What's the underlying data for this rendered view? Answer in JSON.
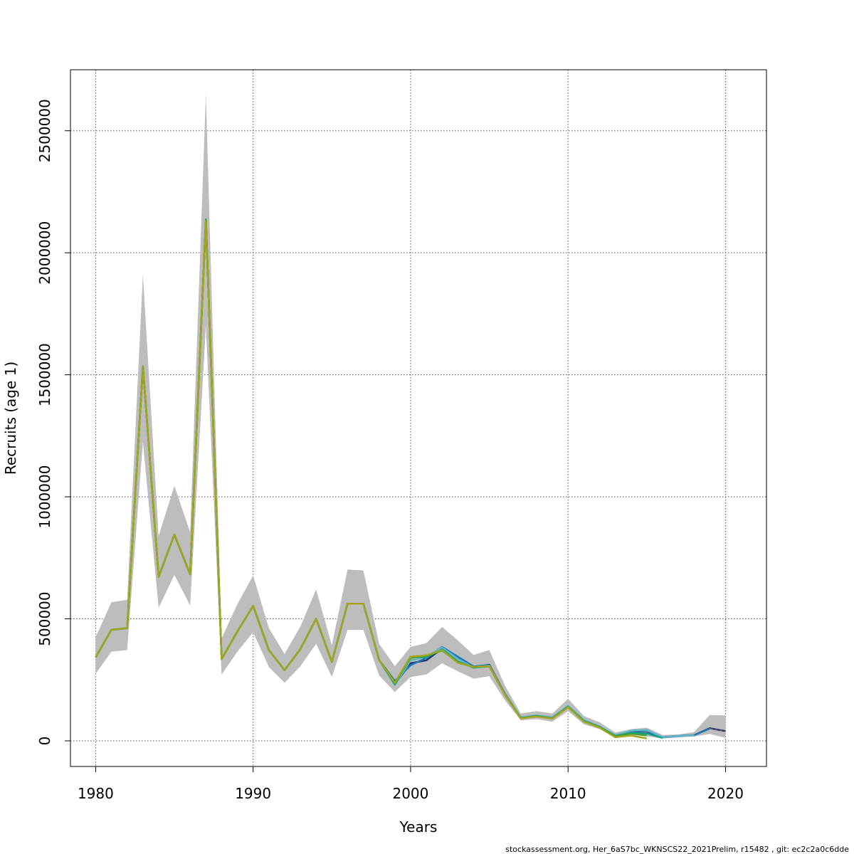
{
  "chart_data": {
    "type": "line",
    "title": "",
    "xlabel": "Years",
    "ylabel": "Recruits (age 1)",
    "xlim": [
      1978.4,
      2022.6
    ],
    "ylim": [
      -105000,
      2750000
    ],
    "x_ticks": [
      1980,
      1990,
      2000,
      2010,
      2020
    ],
    "x_tick_labels": [
      "1980",
      "1990",
      "2000",
      "2010",
      "2020"
    ],
    "y_ticks": [
      0,
      500000,
      1000000,
      1500000,
      2000000,
      2500000
    ],
    "y_tick_labels": [
      "0",
      "500000",
      "1000000",
      "1500000",
      "2000000",
      "2500000"
    ],
    "grid": true,
    "confidence_band": {
      "x": [
        1980,
        1981,
        1982,
        1983,
        1984,
        1985,
        1986,
        1987,
        1988,
        1989,
        1990,
        1991,
        1992,
        1993,
        1994,
        1995,
        1996,
        1997,
        1998,
        1999,
        2000,
        2001,
        2002,
        2003,
        2004,
        2005,
        2006,
        2007,
        2008,
        2009,
        2010,
        2011,
        2012,
        2013,
        2014,
        2015,
        2016,
        2017,
        2018,
        2019,
        2020
      ],
      "lower": [
        275000,
        365000,
        372000,
        1225000,
        545000,
        680000,
        555000,
        1700000,
        272000,
        365000,
        445000,
        302000,
        238000,
        305000,
        398000,
        262000,
        455000,
        455000,
        268000,
        200000,
        262000,
        272000,
        318000,
        285000,
        255000,
        265000,
        165000,
        84000,
        89000,
        78000,
        122000,
        68000,
        48000,
        18000,
        25000,
        18000,
        10000,
        14000,
        18000,
        28000,
        12000
      ],
      "upper": [
        425000,
        568000,
        578000,
        1910000,
        840000,
        1045000,
        855000,
        2650000,
        420000,
        560000,
        678000,
        462000,
        356000,
        468000,
        620000,
        392000,
        702000,
        698000,
        398000,
        306000,
        385000,
        400000,
        467000,
        412000,
        352000,
        372000,
        225000,
        112000,
        122000,
        112000,
        173000,
        102000,
        76000,
        34000,
        48000,
        54000,
        24000,
        26000,
        36000,
        106000,
        104000
      ]
    },
    "series": [
      {
        "color": "#2a2d7a",
        "x": [
          1980,
          1981,
          1982,
          1983,
          1984,
          1985,
          1986,
          1987,
          1988,
          1989,
          1990,
          1991,
          1992,
          1993,
          1994,
          1995,
          1996,
          1997,
          1998,
          1999,
          2000,
          2001,
          2002,
          2003,
          2004,
          2005,
          2006,
          2007,
          2008,
          2009,
          2010,
          2011,
          2012,
          2013,
          2014,
          2015,
          2016,
          2017,
          2018,
          2019,
          2020
        ],
        "y": [
          342000,
          455000,
          462000,
          1535000,
          672000,
          845000,
          682000,
          2135000,
          335000,
          448000,
          553000,
          372000,
          290000,
          376000,
          500000,
          323000,
          562000,
          562000,
          332000,
          232000,
          318000,
          330000,
          378000,
          342000,
          302000,
          312000,
          192000,
          94000,
          102000,
          94000,
          142000,
          84000,
          56000,
          21000,
          35000,
          32000,
          15000,
          21000,
          23000,
          52000,
          40000
        ]
      },
      {
        "color": "#1f78b4",
        "x": [
          1980,
          1981,
          1982,
          1983,
          1984,
          1985,
          1986,
          1987,
          1988,
          1989,
          1990,
          1991,
          1992,
          1993,
          1994,
          1995,
          1996,
          1997,
          1998,
          1999,
          2000,
          2001,
          2002,
          2003,
          2004,
          2005,
          2006,
          2007,
          2008,
          2009,
          2010,
          2011,
          2012,
          2013,
          2014,
          2015,
          2016,
          2017,
          2018,
          2019
        ],
        "y": [
          342000,
          455000,
          462000,
          1535000,
          672000,
          845000,
          682000,
          2135000,
          335000,
          448000,
          553000,
          372000,
          290000,
          376000,
          500000,
          323000,
          562000,
          562000,
          332000,
          245000,
          310000,
          340000,
          385000,
          345000,
          305000,
          310000,
          192000,
          95000,
          103000,
          95000,
          143000,
          85000,
          58000,
          22000,
          40000,
          42000,
          14000,
          20000,
          23000,
          50000
        ]
      },
      {
        "color": "#5fb8c7",
        "x": [
          1980,
          1981,
          1982,
          1983,
          1984,
          1985,
          1986,
          1987,
          1988,
          1989,
          1990,
          1991,
          1992,
          1993,
          1994,
          1995,
          1996,
          1997,
          1998,
          1999,
          2000,
          2001,
          2002,
          2003,
          2004,
          2005,
          2006,
          2007,
          2008,
          2009,
          2010,
          2011,
          2012,
          2013,
          2014,
          2015,
          2016,
          2017,
          2018
        ],
        "y": [
          342000,
          455000,
          462000,
          1535000,
          672000,
          845000,
          682000,
          2135000,
          335000,
          448000,
          553000,
          372000,
          290000,
          376000,
          500000,
          323000,
          562000,
          562000,
          332000,
          228000,
          330000,
          345000,
          383000,
          336000,
          300000,
          308000,
          190000,
          96000,
          104000,
          96000,
          144000,
          86000,
          58000,
          23000,
          42000,
          45000,
          15000,
          21000,
          22000
        ]
      },
      {
        "color": "#17a08a",
        "x": [
          1980,
          1981,
          1982,
          1983,
          1984,
          1985,
          1986,
          1987,
          1988,
          1989,
          1990,
          1991,
          1992,
          1993,
          1994,
          1995,
          1996,
          1997,
          1998,
          1999,
          2000,
          2001,
          2002,
          2003,
          2004,
          2005,
          2006,
          2007,
          2008,
          2009,
          2010,
          2011,
          2012,
          2013,
          2014,
          2015,
          2016
        ],
        "y": [
          342000,
          455000,
          462000,
          1535000,
          672000,
          845000,
          682000,
          2137000,
          335000,
          448000,
          553000,
          372000,
          290000,
          376000,
          500000,
          323000,
          562000,
          562000,
          332000,
          232000,
          345000,
          342000,
          375000,
          325000,
          300000,
          305000,
          188000,
          94000,
          102000,
          93000,
          140000,
          82000,
          57000,
          20000,
          33000,
          30000,
          12000
        ]
      },
      {
        "color": "#39a33a",
        "x": [
          1980,
          1981,
          1982,
          1983,
          1984,
          1985,
          1986,
          1987,
          1988,
          1989,
          1990,
          1991,
          1992,
          1993,
          1994,
          1995,
          1996,
          1997,
          1998,
          1999,
          2000,
          2001,
          2002,
          2003,
          2004,
          2005,
          2006,
          2007,
          2008,
          2009,
          2010,
          2011,
          2012,
          2013,
          2014,
          2015
        ],
        "y": [
          342000,
          455000,
          462000,
          1535000,
          672000,
          845000,
          682000,
          2135000,
          335000,
          448000,
          553000,
          372000,
          290000,
          376000,
          500000,
          323000,
          562000,
          562000,
          332000,
          235000,
          340000,
          348000,
          370000,
          322000,
          302000,
          306000,
          188000,
          93000,
          101000,
          92000,
          139000,
          80000,
          55000,
          19000,
          30000,
          22000
        ]
      },
      {
        "color": "#a3a51c",
        "x": [
          1980,
          1981,
          1982,
          1983,
          1984,
          1985,
          1986,
          1987,
          1988,
          1989,
          1990,
          1991,
          1992,
          1993,
          1994,
          1995,
          1996,
          1997,
          1998,
          1999,
          2000,
          2001,
          2002,
          2003,
          2004,
          2005,
          2006,
          2007,
          2008,
          2009,
          2010,
          2011,
          2012,
          2013,
          2014,
          2015
        ],
        "y": [
          342000,
          455000,
          462000,
          1535000,
          672000,
          845000,
          682000,
          2130000,
          335000,
          448000,
          553000,
          372000,
          290000,
          376000,
          500000,
          323000,
          562000,
          562000,
          332000,
          238000,
          345000,
          350000,
          372000,
          320000,
          303000,
          306000,
          187000,
          92000,
          100000,
          91000,
          138000,
          79000,
          54000,
          15000,
          22000,
          10000
        ]
      },
      {
        "color": "#555555",
        "dash": true,
        "x": [
          2019,
          2020
        ],
        "y": [
          52000,
          40000
        ]
      }
    ],
    "footer_note": "stockassessment.org, Her_6aS7bc_WKNSCS22_2021Prelim, r15482 , git: ec2c2a0c6dde"
  }
}
